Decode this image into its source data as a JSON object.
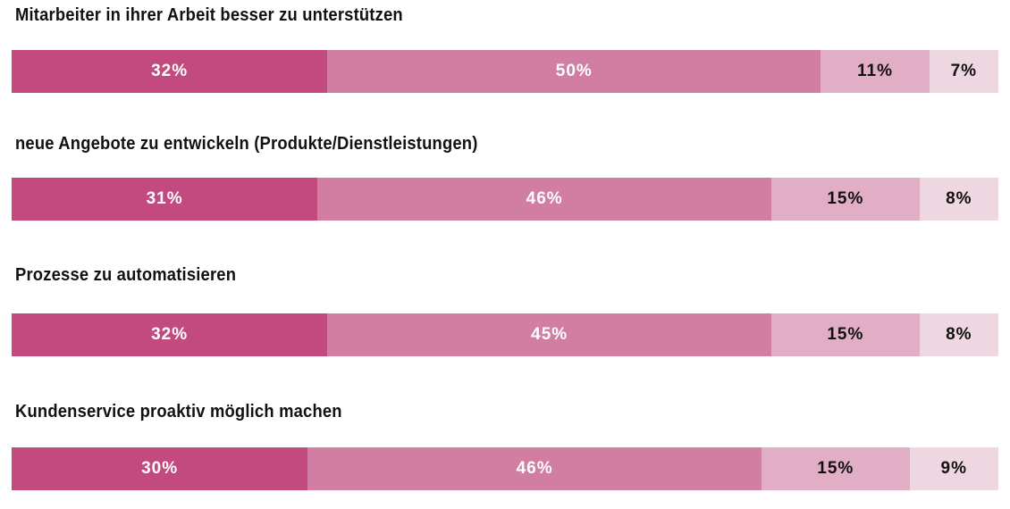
{
  "colors": {
    "seg1": "#c34a7e",
    "seg2": "#d27ea2",
    "seg3": "#e2aec5",
    "seg4": "#efd7e2",
    "label_light": "#ffffff",
    "label_dark": "#111111"
  },
  "chart_data": {
    "type": "bar",
    "orientation": "horizontal",
    "stacked": true,
    "normalized_percent": true,
    "legend": "none",
    "grid": false,
    "categories": [
      "Mitarbeiter in ihrer Arbeit besser zu unterstützen",
      "neue Angebote zu entwickeln (Produkte/Dienstleistungen)",
      "Prozesse zu automatisieren",
      "Kundenservice proaktiv möglich machen"
    ],
    "series": [
      {
        "values": [
          32,
          31,
          32,
          30
        ]
      },
      {
        "values": [
          50,
          46,
          45,
          46
        ]
      },
      {
        "values": [
          11,
          15,
          15,
          15
        ]
      },
      {
        "values": [
          7,
          8,
          8,
          9
        ]
      }
    ],
    "data_labels": [
      [
        "32%",
        "50%",
        "11%",
        "7%"
      ],
      [
        "31%",
        "46%",
        "15%",
        "8%"
      ],
      [
        "32%",
        "45%",
        "15%",
        "8%"
      ],
      [
        "30%",
        "46%",
        "15%",
        "9%"
      ]
    ]
  }
}
